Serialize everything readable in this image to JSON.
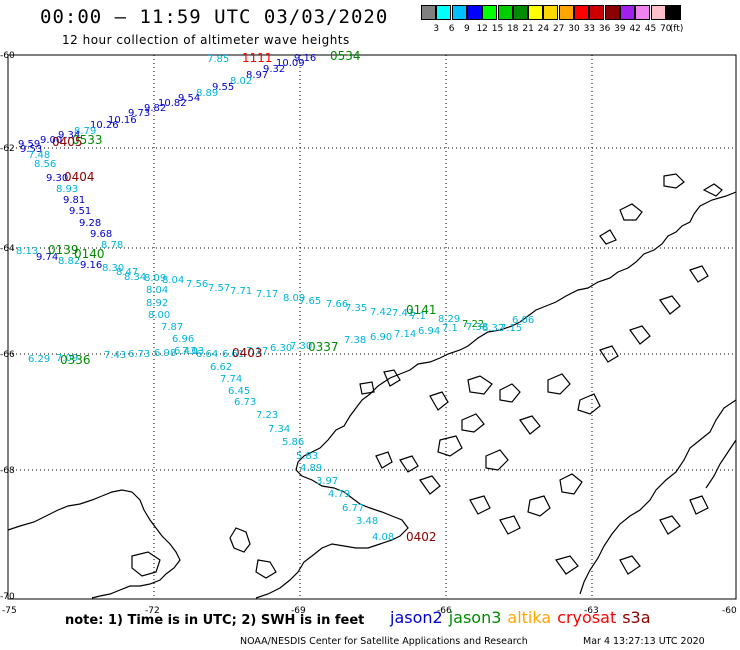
{
  "title": "00:00  –  11:59  UTC  03/03/2020",
  "subtitle": "12 hour collection of altimeter wave heights",
  "colorbar": {
    "colors": [
      "#808080",
      "#00ffff",
      "#00bfff",
      "#0000ff",
      "#00ff00",
      "#00cd00",
      "#008b00",
      "#ffff00",
      "#ffd700",
      "#ffa500",
      "#ff0000",
      "#cd0000",
      "#8b0000",
      "#a020f0",
      "#ee82ee",
      "#ffc0cb",
      "#000000"
    ],
    "labels": [
      "3",
      "6",
      "9",
      "12",
      "15",
      "18",
      "21",
      "24",
      "27",
      "30",
      "33",
      "36",
      "39",
      "42",
      "45",
      "70"
    ],
    "unit": "(ft)"
  },
  "axes": {
    "lat_labels": [
      "-60",
      "-62",
      "-64",
      "-66",
      "-68",
      "-70"
    ],
    "lon_labels": [
      "-75",
      "-72",
      "-69",
      "-66",
      "-63",
      "-60"
    ]
  },
  "satellites": {
    "jason2": "#0000cd",
    "jason3": "#008b00",
    "altika": "#ffa500",
    "cryosat": "#ff0000",
    "s3a": "#8b0000",
    "cyan": "#00b4d8"
  },
  "tracks": [
    {
      "label": "1111",
      "sat": "cryosat",
      "points": [
        {
          "v": "7.85",
          "c": "cyan"
        },
        {
          "v": "10.09",
          "c": "jason2"
        },
        {
          "v": "9.32",
          "c": "jason2"
        },
        {
          "v": "8.97",
          "c": "jason2"
        },
        {
          "v": "8.02",
          "c": "cyan"
        },
        {
          "v": "9.55",
          "c": "jason2"
        },
        {
          "v": "8.89",
          "c": "cyan"
        },
        {
          "v": "9.54",
          "c": "jason2"
        },
        {
          "v": "10.82",
          "c": "jason2"
        },
        {
          "v": "9.82",
          "c": "jason2"
        },
        {
          "v": "9.73",
          "c": "jason2"
        },
        {
          "v": "10.16",
          "c": "jason2"
        },
        {
          "v": "10.26",
          "c": "jason2"
        },
        {
          "v": "8.79",
          "c": "cyan"
        },
        {
          "v": "9.34",
          "c": "jason2"
        },
        {
          "v": "9.00",
          "c": "jason2"
        },
        {
          "v": "9.59",
          "c": "jason2"
        },
        {
          "v": "9.53",
          "c": "jason2"
        }
      ]
    },
    {
      "label": "0534",
      "sat": "jason3",
      "points": [
        {
          "v": "9.16",
          "c": "jason2"
        }
      ]
    },
    {
      "label": "0533",
      "sat": "jason3",
      "points": []
    },
    {
      "label": "0405",
      "sat": "s3a",
      "points": [
        {
          "v": "7.48",
          "c": "cyan"
        },
        {
          "v": "8.56",
          "c": "cyan"
        }
      ]
    },
    {
      "label": "0404",
      "sat": "s3a",
      "points": [
        {
          "v": "9.30",
          "c": "jason2"
        },
        {
          "v": "8.93",
          "c": "cyan"
        },
        {
          "v": "9.81",
          "c": "jason2"
        },
        {
          "v": "9.51",
          "c": "jason2"
        },
        {
          "v": "9.28",
          "c": "jason2"
        },
        {
          "v": "9.68",
          "c": "jason2"
        },
        {
          "v": "8.78",
          "c": "cyan"
        }
      ]
    },
    {
      "label": "0139",
      "sat": "jason3",
      "points": [
        {
          "v": "8.13",
          "c": "cyan"
        },
        {
          "v": "9.74",
          "c": "jason2"
        },
        {
          "v": "8.82",
          "c": "cyan"
        }
      ]
    },
    {
      "label": "0140",
      "sat": "jason3",
      "points": [
        {
          "v": "9.16",
          "c": "jason2"
        },
        {
          "v": "8.30",
          "c": "cyan"
        },
        {
          "v": "8.47",
          "c": "cyan"
        },
        {
          "v": "8.34",
          "c": "cyan"
        },
        {
          "v": "8.09",
          "c": "cyan"
        },
        {
          "v": "8.04",
          "c": "cyan"
        },
        {
          "v": "8.04",
          "c": "cyan"
        },
        {
          "v": "8.92",
          "c": "cyan"
        },
        {
          "v": "8.00",
          "c": "cyan"
        },
        {
          "v": "7.87",
          "c": "cyan"
        },
        {
          "v": "6.96",
          "c": "cyan"
        },
        {
          "v": "7.03",
          "c": "cyan"
        }
      ]
    },
    {
      "label": "0141",
      "sat": "jason3",
      "points": [
        {
          "v": "7.56",
          "c": "cyan"
        },
        {
          "v": "7.57",
          "c": "cyan"
        },
        {
          "v": "7.71",
          "c": "cyan"
        },
        {
          "v": "7.17",
          "c": "cyan"
        },
        {
          "v": "8.09",
          "c": "cyan"
        },
        {
          "v": "7.65",
          "c": "cyan"
        },
        {
          "v": "7.66",
          "c": "cyan"
        },
        {
          "v": "7.35",
          "c": "cyan"
        },
        {
          "v": "7.42",
          "c": "cyan"
        },
        {
          "v": "7.41",
          "c": "cyan"
        },
        {
          "v": "7.1",
          "c": "cyan"
        },
        {
          "v": "8.29",
          "c": "cyan"
        },
        {
          "v": "7.22",
          "c": "jason3"
        },
        {
          "v": "6.32",
          "c": "cyan"
        },
        {
          "v": "7.15",
          "c": "cyan"
        },
        {
          "v": "6.06",
          "c": "cyan"
        }
      ]
    },
    {
      "label": "0337",
      "sat": "jason3",
      "points": [
        {
          "v": "7.38",
          "c": "cyan"
        },
        {
          "v": "6.90",
          "c": "cyan"
        },
        {
          "v": "7.14",
          "c": "cyan"
        },
        {
          "v": "6.94",
          "c": "cyan"
        },
        {
          "v": "7.1",
          "c": "cyan"
        },
        {
          "v": "7.38",
          "c": "cyan"
        },
        {
          "v": "7.30",
          "c": "cyan"
        },
        {
          "v": "6.30",
          "c": "cyan"
        },
        {
          "v": "7.17",
          "c": "cyan"
        },
        {
          "v": "6.61",
          "c": "cyan"
        }
      ]
    },
    {
      "label": "0336",
      "sat": "jason3",
      "points": [
        {
          "v": "6.29",
          "c": "cyan"
        },
        {
          "v": "7.09",
          "c": "cyan"
        },
        {
          "v": "7.43",
          "c": "cyan"
        },
        {
          "v": "6.73",
          "c": "cyan"
        },
        {
          "v": "6.98",
          "c": "cyan"
        },
        {
          "v": "6.43",
          "c": "cyan"
        },
        {
          "v": "6.64",
          "c": "cyan"
        }
      ]
    },
    {
      "label": "0403",
      "sat": "s3a",
      "points": []
    },
    {
      "label": "0402",
      "sat": "s3a",
      "points": [
        {
          "v": "6.62",
          "c": "cyan"
        },
        {
          "v": "7.74",
          "c": "cyan"
        },
        {
          "v": "6.45",
          "c": "cyan"
        },
        {
          "v": "6.73",
          "c": "cyan"
        },
        {
          "v": "7.23",
          "c": "cyan"
        },
        {
          "v": "7.34",
          "c": "cyan"
        },
        {
          "v": "5.86",
          "c": "cyan"
        },
        {
          "v": "5.83",
          "c": "cyan"
        },
        {
          "v": "4.89",
          "c": "cyan"
        },
        {
          "v": "3.97",
          "c": "cyan"
        },
        {
          "v": "4.79",
          "c": "cyan"
        },
        {
          "v": "6.77",
          "c": "cyan"
        },
        {
          "v": "3.48",
          "c": "cyan"
        },
        {
          "v": "4.08",
          "c": "cyan"
        }
      ]
    }
  ],
  "note": "note:  1) Time is in UTC;  2) SWH is in feet",
  "legend": [
    {
      "name": "jason2",
      "sat": "jason2"
    },
    {
      "name": "jason3",
      "sat": "jason3"
    },
    {
      "name": "altika",
      "sat": "altika"
    },
    {
      "name": "cryosat",
      "sat": "cryosat"
    },
    {
      "name": "s3a",
      "sat": "s3a"
    }
  ],
  "footer": "NOAA/NESDIS Center for Satellite Applications and Research",
  "footer_date": "Mar  4 13:27:13 UTC 2020"
}
